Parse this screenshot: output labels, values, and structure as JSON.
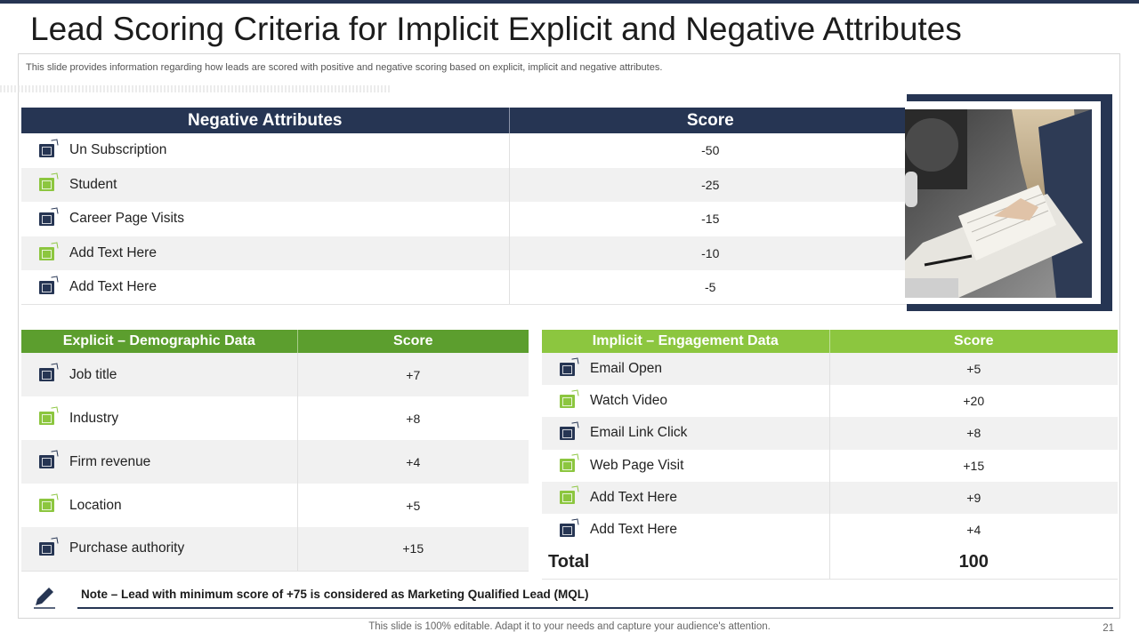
{
  "title": "Lead Scoring Criteria for Implicit Explicit and Negative Attributes",
  "subtitle": "This slide provides information regarding how leads are scored with positive and negative scoring based on explicit, implicit and negative attributes.",
  "negative": {
    "header_label": "Negative Attributes",
    "header_score": "Score",
    "rows": [
      {
        "label": "Un Subscription",
        "score": "-50",
        "icon": "unsubscribe-icon",
        "color": "navy"
      },
      {
        "label": "Student",
        "score": "-25",
        "icon": "student-icon",
        "color": "green"
      },
      {
        "label": "Career Page Visits",
        "score": "-15",
        "icon": "career-page-icon",
        "color": "navy"
      },
      {
        "label": "Add Text Here",
        "score": "-10",
        "icon": "text-icon",
        "color": "green"
      },
      {
        "label": "Add Text Here",
        "score": "-5",
        "icon": "tag-icon",
        "color": "navy"
      }
    ]
  },
  "explicit": {
    "header_label": "Explicit – Demographic Data",
    "header_score": "Score",
    "rows": [
      {
        "label": "Job title",
        "score": "+7",
        "icon": "job-title-icon",
        "color": "navy"
      },
      {
        "label": "Industry",
        "score": "+8",
        "icon": "industry-icon",
        "color": "green"
      },
      {
        "label": "Firm revenue",
        "score": "+4",
        "icon": "revenue-icon",
        "color": "navy"
      },
      {
        "label": "Location",
        "score": "+5",
        "icon": "location-icon",
        "color": "green"
      },
      {
        "label": "Purchase authority",
        "score": "+15",
        "icon": "purchase-icon",
        "color": "navy"
      }
    ]
  },
  "implicit": {
    "header_label": "Implicit – Engagement Data",
    "header_score": "Score",
    "rows": [
      {
        "label": "Email Open",
        "score": "+5",
        "icon": "email-open-icon",
        "color": "navy"
      },
      {
        "label": "Watch Video",
        "score": "+20",
        "icon": "video-icon",
        "color": "green"
      },
      {
        "label": "Email Link Click",
        "score": "+8",
        "icon": "email-link-icon",
        "color": "navy"
      },
      {
        "label": "Web Page Visit",
        "score": "+15",
        "icon": "web-page-icon",
        "color": "green"
      },
      {
        "label": "Add Text Here",
        "score": "+9",
        "icon": "text-icon",
        "color": "green"
      },
      {
        "label": "Add Text Here",
        "score": "+4",
        "icon": "document-icon",
        "color": "navy"
      }
    ],
    "total_label": "Total",
    "total_value": "100"
  },
  "note": "Note – Lead with minimum score of +75 is considered as Marketing Qualified Lead (MQL)",
  "footer": "This slide is 100% editable. Adapt it to your needs and capture your audience's attention.",
  "page_number": "21",
  "colors": {
    "navy": "#263553",
    "dark_green": "#5c9e2e",
    "light_green": "#8cc63f"
  }
}
